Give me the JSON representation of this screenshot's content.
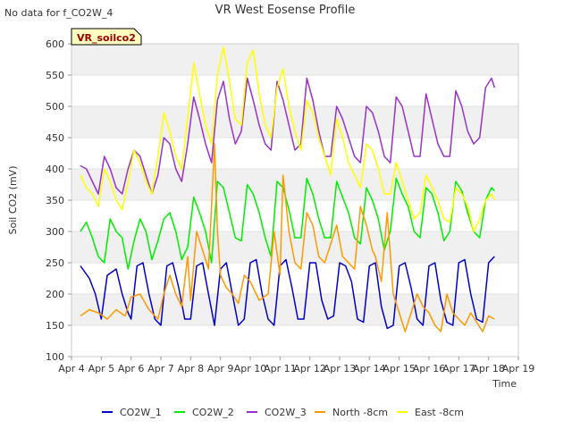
{
  "chart_data": {
    "type": "line",
    "title": "VR West Eosense Profile",
    "corner_note": "No data for f_CO2W_4",
    "site_badge": "VR_soilco2",
    "xlabel": "Time",
    "ylabel": "Soil CO2 (mV)",
    "ylim": [
      100,
      600
    ],
    "xlim": [
      4,
      19
    ],
    "grid": true,
    "legend_position": "bottom",
    "y_ticks": [
      "100",
      "150",
      "200",
      "250",
      "300",
      "350",
      "400",
      "450",
      "500",
      "550",
      "600"
    ],
    "x_ticks": [
      "Apr 4",
      "Apr 5",
      "Apr 6",
      "Apr 7",
      "Apr 8",
      "Apr 9",
      "Apr 10",
      "Apr 11",
      "Apr 12",
      "Apr 13",
      "Apr 14",
      "Apr 15",
      "Apr 16",
      "Apr 17",
      "Apr 18",
      "Apr 19"
    ],
    "series": [
      {
        "name": "CO2W_1",
        "color": "#0000cc",
        "x": [
          4.3,
          4.6,
          4.8,
          5.0,
          5.2,
          5.5,
          5.7,
          5.9,
          6.0,
          6.2,
          6.4,
          6.6,
          6.8,
          7.0,
          7.2,
          7.4,
          7.6,
          7.8,
          8.0,
          8.2,
          8.4,
          8.6,
          8.8,
          9.0,
          9.2,
          9.4,
          9.6,
          9.8,
          10.0,
          10.2,
          10.4,
          10.6,
          10.8,
          11.0,
          11.2,
          11.4,
          11.6,
          11.8,
          12.0,
          12.2,
          12.4,
          12.6,
          12.8,
          13.0,
          13.2,
          13.4,
          13.6,
          13.8,
          14.0,
          14.2,
          14.4,
          14.6,
          14.8,
          15.0,
          15.2,
          15.4,
          15.6,
          15.8,
          16.0,
          16.2,
          16.4,
          16.6,
          16.8,
          17.0,
          17.2,
          17.4,
          17.6,
          17.8,
          18.0,
          18.2
        ],
        "values": [
          245,
          225,
          200,
          160,
          230,
          240,
          200,
          170,
          160,
          245,
          250,
          200,
          160,
          150,
          245,
          250,
          210,
          160,
          160,
          245,
          250,
          200,
          150,
          240,
          250,
          200,
          150,
          160,
          250,
          255,
          200,
          160,
          150,
          245,
          255,
          210,
          160,
          160,
          250,
          250,
          190,
          160,
          165,
          250,
          245,
          220,
          160,
          155,
          245,
          250,
          180,
          145,
          150,
          245,
          250,
          210,
          160,
          150,
          245,
          250,
          190,
          155,
          150,
          250,
          255,
          200,
          160,
          155,
          250,
          260
        ]
      },
      {
        "name": "CO2W_2",
        "color": "#00ee00",
        "x": [
          4.3,
          4.5,
          4.7,
          4.9,
          5.1,
          5.3,
          5.5,
          5.7,
          5.9,
          6.1,
          6.3,
          6.5,
          6.7,
          6.9,
          7.1,
          7.3,
          7.5,
          7.7,
          7.9,
          8.1,
          8.3,
          8.5,
          8.7,
          8.9,
          9.1,
          9.3,
          9.5,
          9.7,
          9.9,
          10.1,
          10.3,
          10.5,
          10.7,
          10.9,
          11.1,
          11.3,
          11.5,
          11.7,
          11.9,
          12.1,
          12.3,
          12.5,
          12.7,
          12.9,
          13.1,
          13.3,
          13.5,
          13.7,
          13.9,
          14.1,
          14.3,
          14.5,
          14.7,
          14.9,
          15.1,
          15.3,
          15.5,
          15.7,
          15.9,
          16.1,
          16.3,
          16.5,
          16.7,
          16.9,
          17.1,
          17.3,
          17.5,
          17.7,
          17.9,
          18.1,
          18.2
        ],
        "values": [
          300,
          315,
          290,
          260,
          250,
          320,
          300,
          290,
          240,
          285,
          320,
          300,
          255,
          285,
          320,
          330,
          300,
          255,
          275,
          355,
          330,
          300,
          250,
          380,
          370,
          330,
          290,
          285,
          375,
          360,
          330,
          290,
          260,
          380,
          370,
          335,
          290,
          290,
          385,
          360,
          320,
          290,
          290,
          380,
          355,
          330,
          290,
          280,
          370,
          350,
          320,
          270,
          300,
          385,
          360,
          340,
          300,
          290,
          370,
          360,
          330,
          285,
          300,
          380,
          365,
          330,
          300,
          290,
          350,
          370,
          365
        ]
      },
      {
        "name": "CO2W_3",
        "color": "#9932cc",
        "x": [
          4.3,
          4.5,
          4.7,
          4.9,
          5.1,
          5.3,
          5.5,
          5.7,
          5.9,
          6.1,
          6.3,
          6.5,
          6.7,
          6.9,
          7.1,
          7.3,
          7.5,
          7.7,
          7.9,
          8.1,
          8.3,
          8.5,
          8.7,
          8.9,
          9.1,
          9.3,
          9.5,
          9.7,
          9.9,
          10.1,
          10.3,
          10.5,
          10.7,
          10.9,
          11.1,
          11.3,
          11.5,
          11.7,
          11.9,
          12.1,
          12.3,
          12.5,
          12.7,
          12.9,
          13.1,
          13.3,
          13.5,
          13.7,
          13.9,
          14.1,
          14.3,
          14.5,
          14.7,
          14.9,
          15.1,
          15.3,
          15.5,
          15.7,
          15.9,
          16.1,
          16.3,
          16.5,
          16.7,
          16.9,
          17.1,
          17.3,
          17.5,
          17.7,
          17.9,
          18.1,
          18.2
        ],
        "values": [
          405,
          400,
          380,
          360,
          420,
          400,
          370,
          360,
          400,
          430,
          420,
          390,
          360,
          390,
          450,
          440,
          400,
          380,
          440,
          515,
          480,
          440,
          410,
          510,
          540,
          480,
          440,
          460,
          545,
          510,
          470,
          440,
          430,
          540,
          510,
          470,
          430,
          440,
          545,
          510,
          460,
          420,
          420,
          500,
          480,
          450,
          420,
          410,
          500,
          490,
          460,
          420,
          410,
          515,
          500,
          460,
          420,
          420,
          520,
          480,
          440,
          420,
          420,
          525,
          500,
          460,
          440,
          450,
          530,
          545,
          530
        ]
      },
      {
        "name": "North -8cm",
        "color": "#ff9900",
        "x": [
          4.3,
          4.6,
          4.9,
          5.2,
          5.5,
          5.8,
          6.0,
          6.3,
          6.6,
          6.9,
          7.1,
          7.3,
          7.5,
          7.7,
          7.9,
          8.0,
          8.2,
          8.4,
          8.6,
          8.8,
          8.9,
          9.0,
          9.2,
          9.4,
          9.6,
          9.8,
          10.0,
          10.3,
          10.6,
          10.8,
          11.0,
          11.1,
          11.3,
          11.5,
          11.7,
          11.9,
          12.1,
          12.3,
          12.5,
          12.7,
          12.9,
          13.1,
          13.3,
          13.5,
          13.7,
          13.9,
          14.1,
          14.2,
          14.4,
          14.6,
          14.8,
          15.0,
          15.2,
          15.4,
          15.6,
          15.8,
          16.0,
          16.2,
          16.4,
          16.6,
          16.8,
          17.0,
          17.2,
          17.4,
          17.6,
          17.8,
          18.0,
          18.2
        ],
        "values": [
          165,
          175,
          170,
          160,
          175,
          165,
          195,
          200,
          175,
          160,
          200,
          230,
          200,
          180,
          260,
          190,
          300,
          270,
          240,
          440,
          300,
          230,
          210,
          200,
          185,
          230,
          220,
          190,
          200,
          300,
          230,
          390,
          300,
          250,
          240,
          330,
          310,
          260,
          250,
          280,
          310,
          260,
          250,
          240,
          340,
          310,
          270,
          260,
          220,
          330,
          200,
          170,
          140,
          170,
          200,
          180,
          170,
          150,
          140,
          200,
          170,
          160,
          150,
          170,
          155,
          140,
          165,
          160
        ]
      },
      {
        "name": "East -8cm",
        "color": "#ffff00",
        "x": [
          4.3,
          4.5,
          4.7,
          4.9,
          5.1,
          5.3,
          5.5,
          5.7,
          5.9,
          6.1,
          6.3,
          6.5,
          6.7,
          6.9,
          7.1,
          7.3,
          7.5,
          7.7,
          7.9,
          8.1,
          8.3,
          8.5,
          8.7,
          8.9,
          9.1,
          9.3,
          9.5,
          9.7,
          9.9,
          10.1,
          10.3,
          10.5,
          10.7,
          10.9,
          11.1,
          11.3,
          11.5,
          11.7,
          11.9,
          12.1,
          12.3,
          12.5,
          12.7,
          12.9,
          13.1,
          13.3,
          13.5,
          13.7,
          13.9,
          14.1,
          14.3,
          14.5,
          14.7,
          14.9,
          15.1,
          15.3,
          15.5,
          15.7,
          15.9,
          16.1,
          16.3,
          16.5,
          16.7,
          16.9,
          17.1,
          17.3,
          17.5,
          17.7,
          17.9,
          18.1,
          18.2
        ],
        "values": [
          390,
          370,
          360,
          340,
          400,
          380,
          350,
          335,
          380,
          430,
          410,
          380,
          360,
          420,
          490,
          460,
          420,
          400,
          480,
          570,
          520,
          470,
          440,
          550,
          595,
          540,
          480,
          470,
          570,
          590,
          520,
          470,
          450,
          530,
          560,
          500,
          460,
          430,
          510,
          490,
          450,
          420,
          390,
          480,
          450,
          410,
          390,
          370,
          440,
          430,
          400,
          360,
          360,
          410,
          380,
          350,
          320,
          330,
          390,
          370,
          350,
          320,
          315,
          370,
          360,
          340,
          300,
          320,
          350,
          360,
          350
        ]
      }
    ]
  }
}
